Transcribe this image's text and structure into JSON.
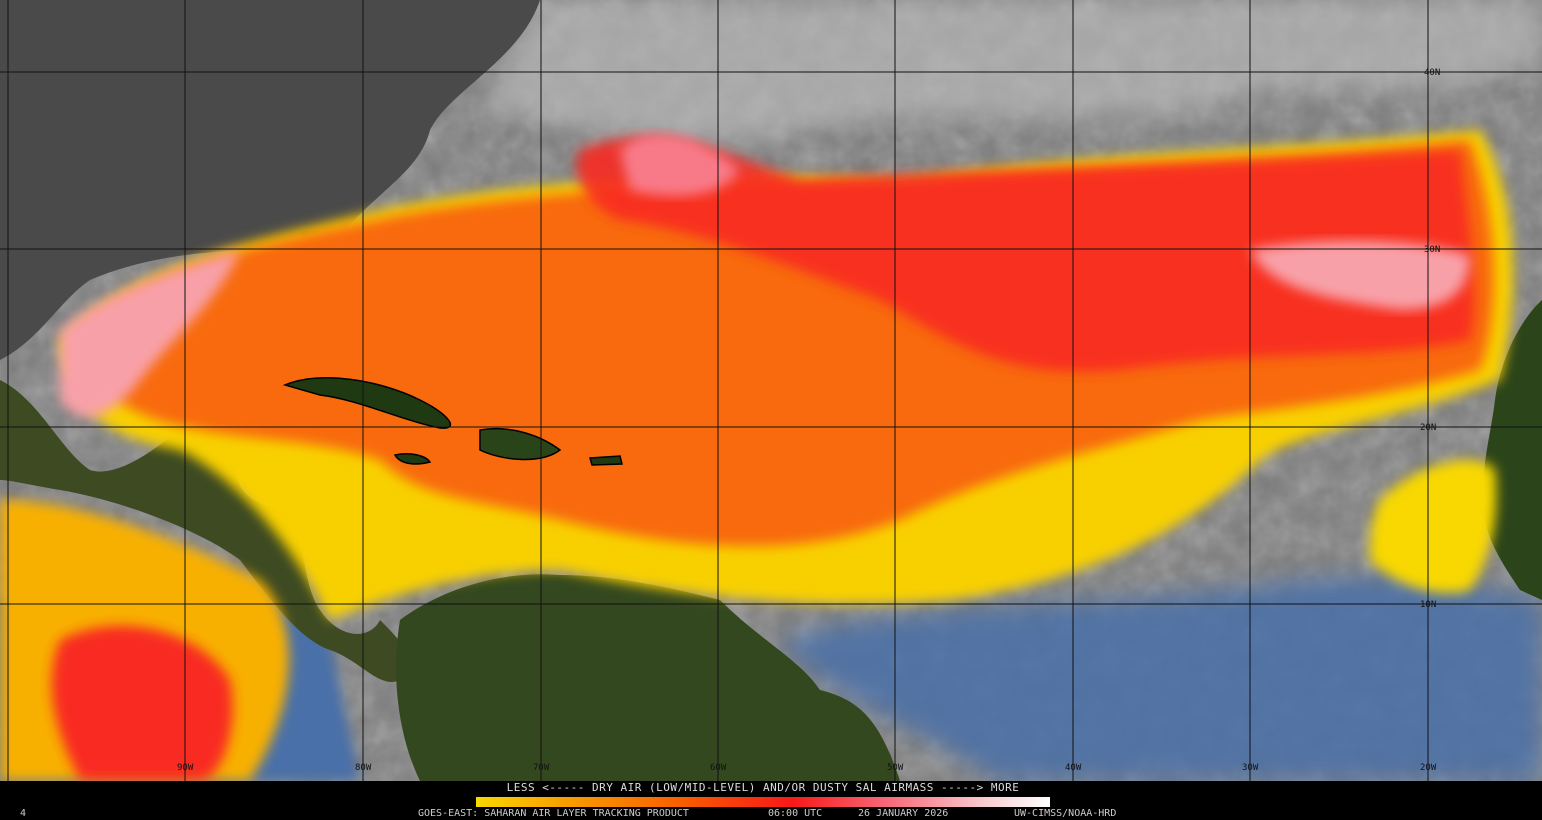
{
  "map": {
    "longitude_labels": [
      "90W",
      "80W",
      "70W",
      "60W",
      "50W",
      "40W",
      "30W",
      "20W"
    ],
    "latitude_labels": [
      "40N",
      "30N",
      "20N",
      "10N"
    ],
    "colors": {
      "ocean_clear": "#4a6fa8",
      "cloud_gray": "#8a8a8a",
      "land_dark": "#1f3a12",
      "sal_yellow": "#f8e000",
      "sal_orange": "#f86a00",
      "sal_red": "#f82020",
      "sal_pink": "#f8a0a8"
    }
  },
  "legend": {
    "title": "LESS <----- DRY AIR (LOW/MID-LEVEL) AND/OR DUSTY SAL AIRMASS -----> MORE",
    "colorbar_start": "#f8d800",
    "colorbar_end": "#ffffff"
  },
  "footer": {
    "corner_mark": "4",
    "product": "GOES-EAST: SAHARAN AIR LAYER TRACKING PRODUCT",
    "time": "06:00 UTC",
    "date": "26 JANUARY 2026",
    "credit": "UW-CIMSS/NOAA-HRD"
  }
}
